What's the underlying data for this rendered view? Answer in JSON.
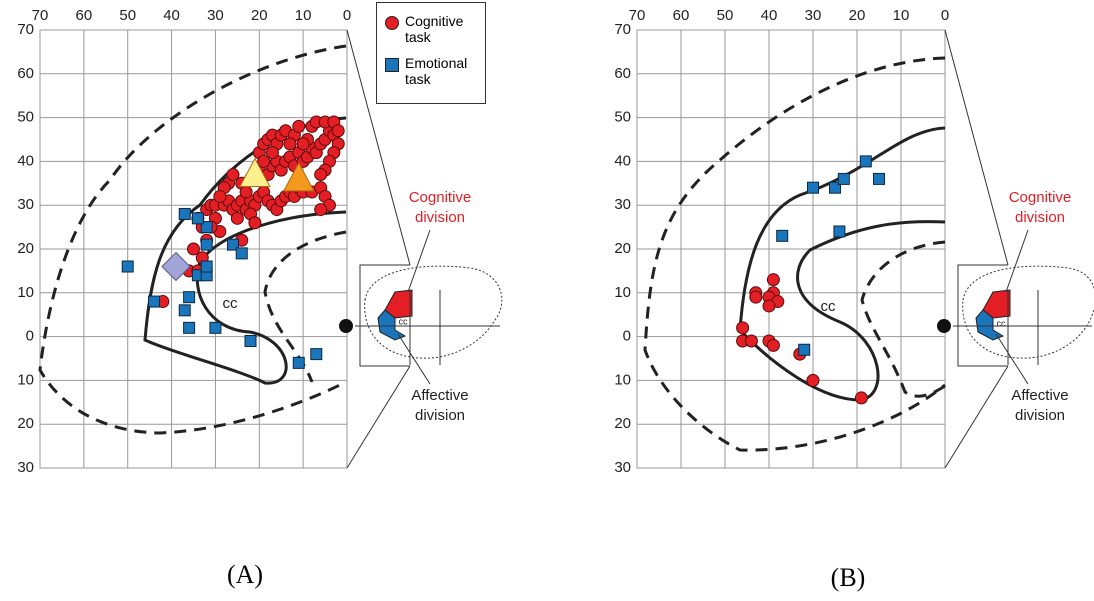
{
  "chart_data": [
    {
      "type": "scatter",
      "panel_label": "(A)",
      "cc_label": "cc",
      "inset_cc_label": "cc",
      "cognitive_label": "Cognitive division",
      "affective_label": "Affective division",
      "xlim": [
        70,
        0
      ],
      "ylim": [
        -30,
        70
      ],
      "xticks": [
        70,
        60,
        50,
        40,
        30,
        20,
        10,
        0
      ],
      "yticks": [
        70,
        60,
        50,
        40,
        30,
        20,
        10,
        0,
        {
          "value": -10,
          "label": "10"
        },
        {
          "value": -20,
          "label": "20"
        },
        {
          "value": -30,
          "label": "30"
        }
      ],
      "grid": true,
      "legend": "top-right",
      "series": [
        {
          "name": "Cognitive task",
          "color": "#e31e24",
          "marker": "circle",
          "x": [
            34,
            33,
            32,
            31,
            30,
            29,
            30,
            28,
            27,
            26,
            25,
            24,
            23,
            22,
            21,
            20,
            19,
            18,
            17,
            16,
            15,
            14,
            13,
            12,
            11,
            10,
            8,
            6,
            5,
            4,
            6,
            24,
            22,
            20,
            18,
            17,
            16,
            15,
            14,
            13,
            12,
            11,
            10,
            9,
            8,
            7,
            6,
            5,
            4,
            3,
            2,
            3,
            4,
            5,
            6,
            20,
            19,
            18,
            17,
            16,
            15,
            14,
            12,
            11,
            9,
            8,
            7,
            5,
            3,
            2,
            19,
            17,
            13,
            10,
            27,
            26,
            23,
            22,
            25,
            28,
            31,
            32,
            35,
            33,
            36,
            34,
            24,
            29,
            21,
            42
          ],
          "y": [
            27,
            25,
            29,
            30,
            30,
            24,
            27,
            30,
            31,
            29,
            30,
            31,
            29,
            31,
            30,
            32,
            33,
            31,
            30,
            29,
            31,
            32,
            33,
            32,
            34,
            33,
            33,
            34,
            32,
            30,
            29,
            35,
            36,
            38,
            37,
            39,
            40,
            38,
            40,
            41,
            39,
            42,
            40,
            41,
            43,
            42,
            44,
            45,
            47,
            46,
            44,
            42,
            40,
            38,
            37,
            42,
            44,
            45,
            46,
            44,
            46,
            47,
            46,
            48,
            45,
            48,
            49,
            49,
            49,
            47,
            40,
            42,
            44,
            44,
            35,
            37,
            33,
            28,
            27,
            34,
            25,
            22,
            20,
            18,
            15,
            15,
            22,
            32,
            26,
            8
          ]
        },
        {
          "name": "Emotional task",
          "color": "#1a75bb",
          "marker": "square",
          "x": [
            50,
            44,
            37,
            37,
            36,
            36,
            30,
            34,
            32,
            32,
            32,
            32,
            26,
            24,
            22,
            11,
            7,
            34
          ],
          "y": [
            16,
            8,
            28,
            6,
            9,
            2,
            2,
            14,
            14,
            16,
            21,
            25,
            21,
            19,
            -1,
            -6,
            -4,
            27
          ]
        },
        {
          "color": "#fdf08c",
          "marker": "triangle",
          "x": [
            21
          ],
          "y": [
            37
          ]
        },
        {
          "color": "#f39a1e",
          "marker": "triangle",
          "x": [
            11
          ],
          "y": [
            36
          ]
        },
        {
          "color": "#a2a6d6",
          "marker": "diamond",
          "x": [
            39
          ],
          "y": [
            16
          ]
        }
      ]
    },
    {
      "type": "scatter",
      "panel_label": "(B)",
      "cc_label": "cc",
      "inset_cc_label": "cc",
      "cognitive_label": "Cognitive division",
      "affective_label": "Affective division",
      "xlim": [
        70,
        0
      ],
      "ylim": [
        -30,
        70
      ],
      "xticks": [
        70,
        60,
        50,
        40,
        30,
        20,
        10,
        0
      ],
      "yticks": [
        70,
        60,
        50,
        40,
        30,
        20,
        10,
        0,
        {
          "value": -10,
          "label": "10"
        },
        {
          "value": -20,
          "label": "20"
        },
        {
          "value": -30,
          "label": "30"
        }
      ],
      "grid": true,
      "series": [
        {
          "color": "#e31e24",
          "marker": "circle",
          "x": [
            43,
            43,
            39,
            39,
            40,
            38,
            40,
            46,
            46,
            44,
            40,
            39,
            33,
            30,
            19
          ],
          "y": [
            10,
            9,
            13,
            10,
            9,
            8,
            7,
            2,
            -1,
            -1,
            -1,
            -2,
            -4,
            -10,
            -14
          ]
        },
        {
          "color": "#1a75bb",
          "marker": "square",
          "x": [
            37,
            30,
            25,
            23,
            18,
            15,
            24,
            32
          ],
          "y": [
            23,
            34,
            34,
            36,
            40,
            36,
            24,
            -3
          ]
        }
      ]
    }
  ]
}
